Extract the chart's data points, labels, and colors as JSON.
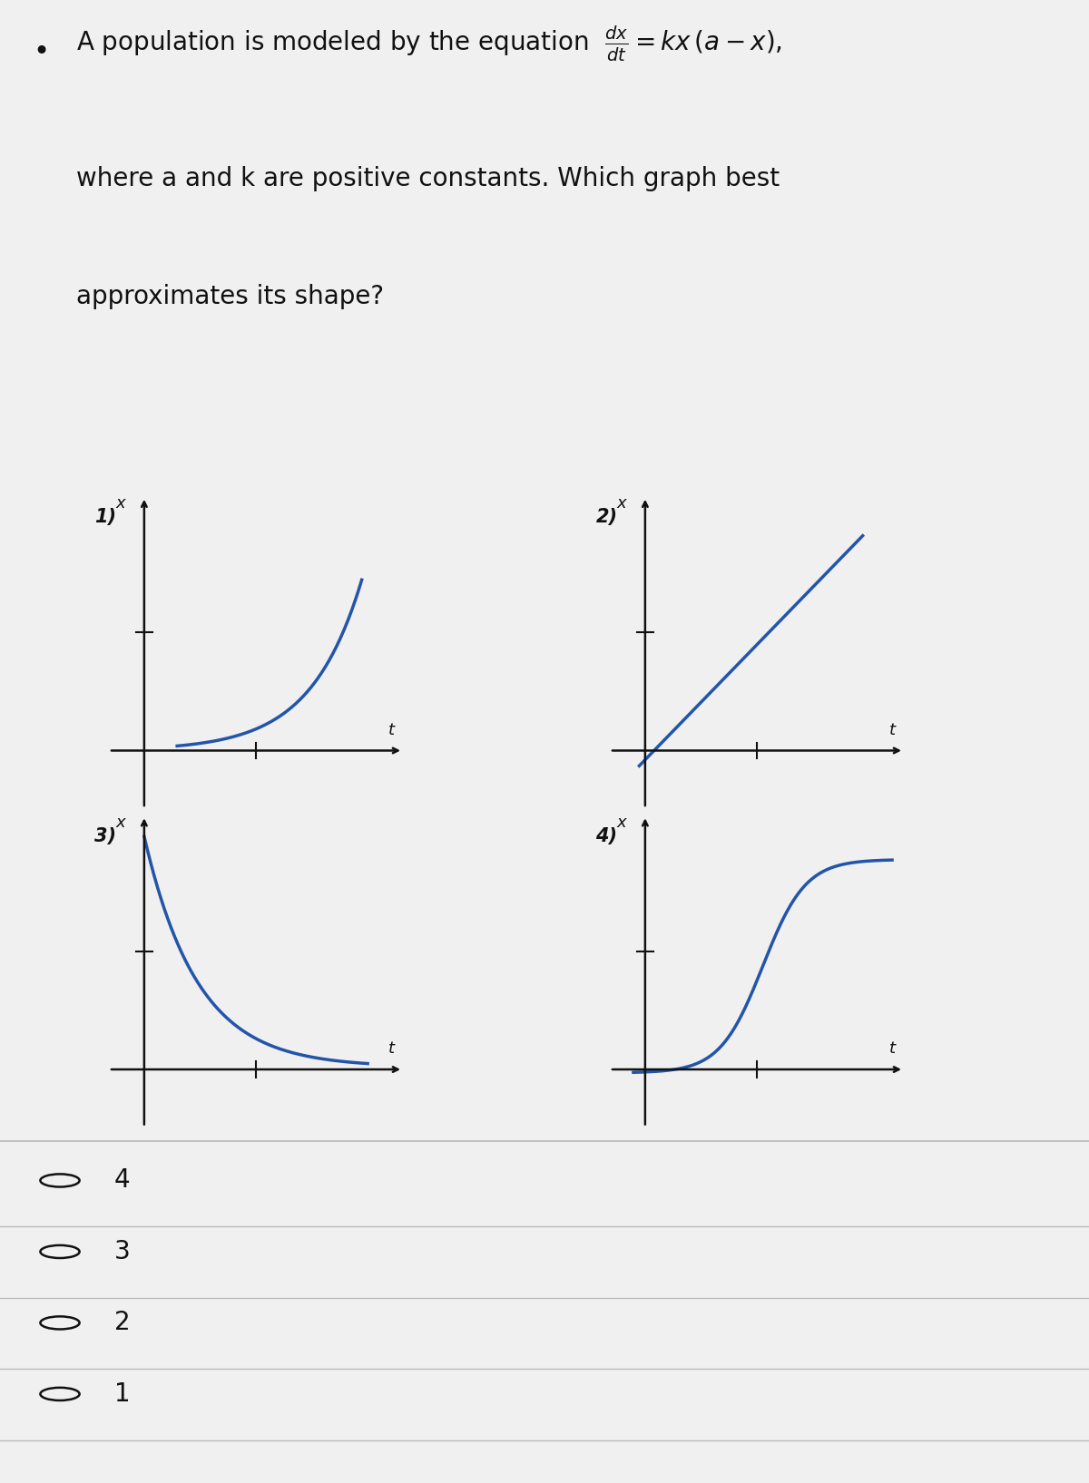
{
  "title_text": "A population is modeled by the equation",
  "equation": "$\\frac{dx}{dt} = kx\\,(a - x)$",
  "subtitle": "where a and k are positive constants. Which graph best\napproximates its shape?",
  "background_color": "#f0f0f0",
  "curve_color": "#2255aa",
  "axis_color": "#111111",
  "text_color": "#111111",
  "radio_options": [
    "4",
    "3",
    "2",
    "1"
  ],
  "graph_labels": [
    "1)",
    "2)",
    "3)",
    "4)"
  ]
}
